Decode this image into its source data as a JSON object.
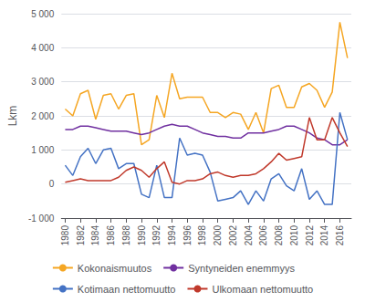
{
  "chart_data": {
    "type": "line",
    "ylabel": "Lkm",
    "x": [
      1980,
      1981,
      1982,
      1983,
      1984,
      1985,
      1986,
      1987,
      1988,
      1989,
      1990,
      1991,
      1992,
      1993,
      1994,
      1995,
      1996,
      1997,
      1998,
      1999,
      2000,
      2001,
      2002,
      2003,
      2004,
      2005,
      2006,
      2007,
      2008,
      2009,
      2010,
      2011,
      2012,
      2013,
      2014,
      2015,
      2016,
      2017
    ],
    "series": [
      {
        "name": "Kokonaismuutos",
        "color": "#f5a623",
        "values": [
          2200,
          2000,
          2650,
          2750,
          1900,
          2600,
          2650,
          2200,
          2600,
          2650,
          1150,
          1300,
          2600,
          1950,
          3250,
          2500,
          2550,
          2550,
          2550,
          2100,
          2100,
          1950,
          2100,
          2050,
          1600,
          2100,
          1500,
          2800,
          2900,
          2250,
          2250,
          2850,
          2950,
          2750,
          2250,
          2700,
          4750,
          3700
        ]
      },
      {
        "name": "Syntyneiden enemmyys",
        "color": "#7030a0",
        "values": [
          1600,
          1600,
          1700,
          1700,
          1650,
          1600,
          1550,
          1550,
          1550,
          1500,
          1450,
          1500,
          1600,
          1700,
          1750,
          1700,
          1700,
          1600,
          1500,
          1450,
          1400,
          1400,
          1350,
          1350,
          1500,
          1500,
          1500,
          1550,
          1600,
          1700,
          1700,
          1600,
          1500,
          1350,
          1300,
          1150,
          1150,
          1300
        ]
      },
      {
        "name": "Kotimaan nettomuutto",
        "color": "#4472c4",
        "values": [
          550,
          250,
          800,
          1050,
          600,
          1000,
          1050,
          450,
          600,
          600,
          -300,
          -400,
          550,
          -400,
          -400,
          1350,
          850,
          900,
          850,
          350,
          -500,
          -450,
          -400,
          -200,
          -600,
          -200,
          -500,
          150,
          300,
          -50,
          -200,
          450,
          -450,
          -200,
          -600,
          -600,
          2100,
          1300
        ]
      },
      {
        "name": "Ulkomaan nettomuutto",
        "color": "#c0392b",
        "values": [
          50,
          100,
          150,
          100,
          100,
          100,
          100,
          200,
          400,
          500,
          400,
          200,
          450,
          650,
          50,
          0,
          100,
          100,
          150,
          300,
          350,
          250,
          200,
          250,
          250,
          300,
          450,
          650,
          900,
          700,
          750,
          800,
          1950,
          1300,
          1300,
          1950,
          1500,
          1100
        ]
      }
    ],
    "xlim": [
      1979.5,
      2017.5
    ],
    "xticks": [
      1980,
      1982,
      1984,
      1986,
      1988,
      1990,
      1992,
      1994,
      1996,
      1998,
      2000,
      2002,
      2004,
      2006,
      2008,
      2010,
      2012,
      2014,
      2016
    ],
    "ylim": [
      -1000,
      5000
    ],
    "yticks": [
      {
        "value": -1000,
        "label": "-1 000"
      },
      0,
      {
        "value": 1000,
        "label": "1 000"
      },
      {
        "value": 2000,
        "label": "2 000"
      },
      {
        "value": 3000,
        "label": "3 000"
      },
      {
        "value": 4000,
        "label": "4 000"
      },
      {
        "value": 5000,
        "label": "5 000"
      }
    ],
    "grid": true,
    "legend": "bottom"
  }
}
